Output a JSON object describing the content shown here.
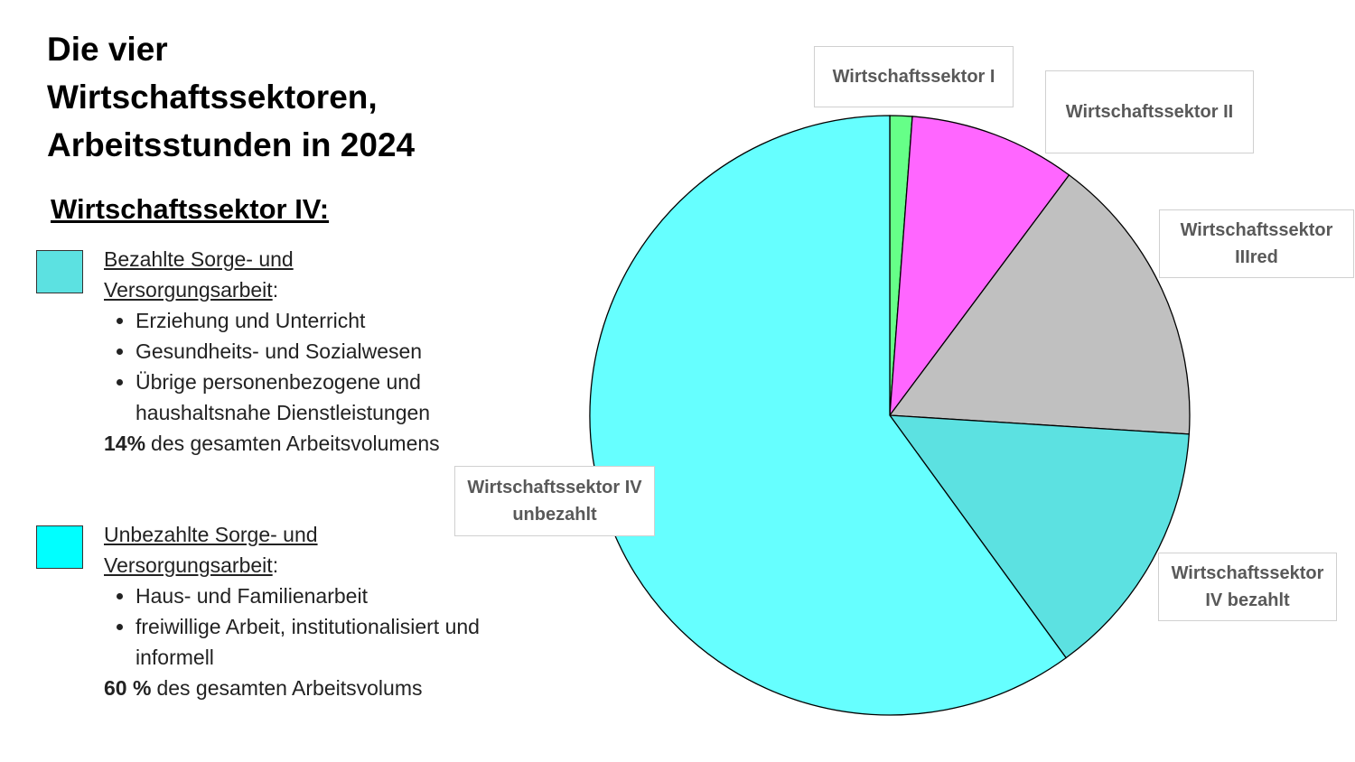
{
  "chart_data": {
    "type": "pie",
    "title": "Die vier Wirtschaftssektoren, Arbeitsstunden in 2024",
    "categories": [
      "Wirtschaftssektor I",
      "Wirtschaftssektor II",
      "Wirtschaftssektor IIIred",
      "Wirtschaftssektor IV bezahlt",
      "Wirtschaftssektor IV unbezahlt"
    ],
    "values": [
      1.2,
      9,
      15.8,
      14,
      60
    ],
    "colors": [
      "#66ff88",
      "#ff66ff",
      "#c0c0c0",
      "#5ce1e1",
      "#66ffff"
    ]
  },
  "panel": {
    "heading": "Wirtschaftssektor IV:",
    "groups": [
      {
        "color": "#5ce1e1",
        "title": "Bezahlte Sorge- und Versorgungsarbeit",
        "title_suffix": ":",
        "items": [
          "Erziehung und Unterricht",
          "Gesundheits- und  Sozialwesen",
          "Übrige personenbezogene und haushaltsnahe Dienstleistungen"
        ],
        "share": "14%",
        "share_text": "des gesamten Arbeitsvolumens"
      },
      {
        "color": "#00ffff",
        "title": "Unbezahlte Sorge- und Versorgungsarbeit",
        "title_suffix": ":",
        "items": [
          "Haus- und Familienarbeit",
          "freiwillige Arbeit, institutionalisiert und informell"
        ],
        "share": "60 %",
        "share_text": "des gesamten Arbeitsvolums"
      }
    ]
  }
}
